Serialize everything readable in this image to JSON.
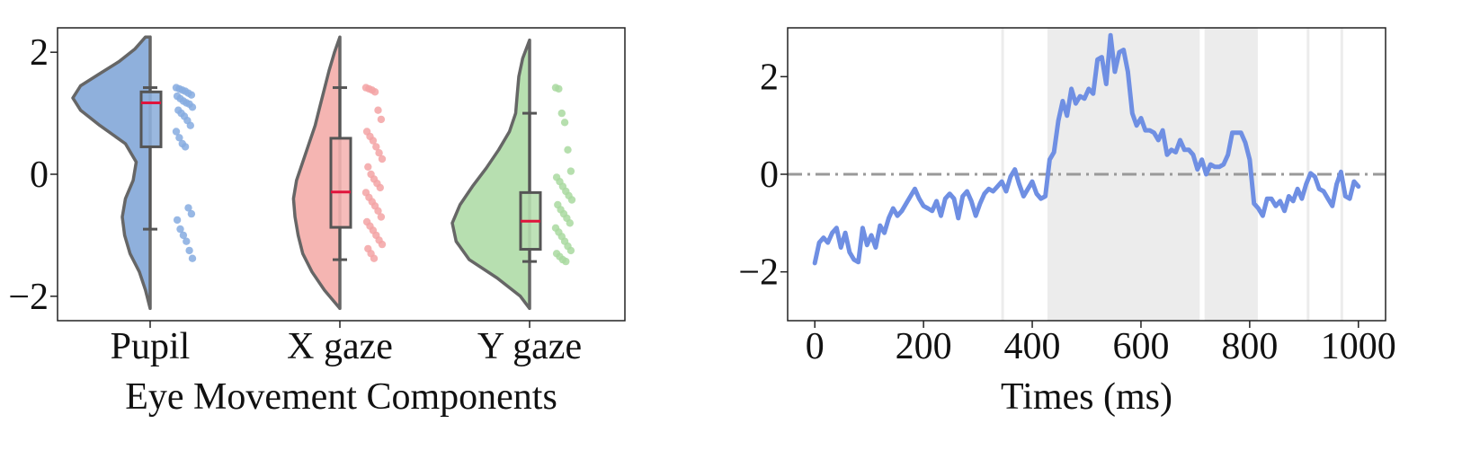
{
  "chart_data": [
    {
      "type": "violin",
      "title": "",
      "xlabel": "Eye Movement Components",
      "ylabel": "",
      "ylim": [
        -2.4,
        2.4
      ],
      "yticks": [
        2,
        0,
        -2
      ],
      "ytick_labels": [
        "2",
        "0",
        "−2"
      ],
      "categories": [
        "Pupil",
        "X gaze",
        "Y gaze"
      ],
      "grid": false,
      "series": [
        {
          "category": "Pupil",
          "color": "#8fb0dc",
          "point_color": "#86ace0",
          "median_color": "#e0143c",
          "extent": [
            -2.2,
            2.25
          ],
          "density": [
            [
              -2.2,
              0.0
            ],
            [
              -1.9,
              0.06
            ],
            [
              -1.6,
              0.14
            ],
            [
              -1.3,
              0.26
            ],
            [
              -1.0,
              0.33
            ],
            [
              -0.7,
              0.36
            ],
            [
              -0.4,
              0.32
            ],
            [
              -0.1,
              0.22
            ],
            [
              0.2,
              0.18
            ],
            [
              0.5,
              0.32
            ],
            [
              0.8,
              0.65
            ],
            [
              1.05,
              0.9
            ],
            [
              1.25,
              1.0
            ],
            [
              1.45,
              0.9
            ],
            [
              1.65,
              0.65
            ],
            [
              1.85,
              0.4
            ],
            [
              2.05,
              0.2
            ],
            [
              2.25,
              0.06
            ]
          ],
          "box": {
            "whisker_low": -0.9,
            "q1": 0.45,
            "median": 1.17,
            "q3": 1.35,
            "whisker_high": 1.42
          },
          "points": [
            1.42,
            1.4,
            1.38,
            1.36,
            1.33,
            1.3,
            1.28,
            1.24,
            1.2,
            1.17,
            1.15,
            1.1,
            1.05,
            1.0,
            0.95,
            0.88,
            0.8,
            0.7,
            0.6,
            0.5,
            0.45,
            -0.55,
            -0.65,
            -0.75,
            -0.9,
            -1.0,
            -1.1,
            -1.25,
            -1.38
          ]
        },
        {
          "category": "X gaze",
          "color": "#f5b5b2",
          "point_color": "#f3a3a5",
          "median_color": "#e0143c",
          "extent": [
            -2.2,
            2.25
          ],
          "density": [
            [
              -2.2,
              0.0
            ],
            [
              -1.9,
              0.2
            ],
            [
              -1.6,
              0.36
            ],
            [
              -1.3,
              0.48
            ],
            [
              -1.0,
              0.54
            ],
            [
              -0.7,
              0.58
            ],
            [
              -0.4,
              0.6
            ],
            [
              -0.1,
              0.56
            ],
            [
              0.2,
              0.48
            ],
            [
              0.5,
              0.4
            ],
            [
              0.8,
              0.32
            ],
            [
              1.1,
              0.26
            ],
            [
              1.4,
              0.2
            ],
            [
              1.7,
              0.14
            ],
            [
              2.0,
              0.07
            ],
            [
              2.25,
              0.0
            ]
          ],
          "box": {
            "whisker_low": -1.4,
            "q1": -0.87,
            "median": -0.29,
            "q3": 0.59,
            "whisker_high": 1.42
          },
          "points": [
            1.42,
            1.4,
            1.38,
            1.35,
            1.05,
            0.9,
            0.7,
            0.62,
            0.55,
            0.45,
            0.35,
            0.25,
            0.12,
            0.0,
            -0.08,
            -0.15,
            -0.22,
            -0.3,
            -0.38,
            -0.45,
            -0.52,
            -0.6,
            -0.7,
            -0.78,
            -0.85,
            -0.92,
            -1.0,
            -1.08,
            -1.15,
            -1.22,
            -1.3,
            -1.38
          ]
        },
        {
          "category": "Y gaze",
          "color": "#b7dfb0",
          "point_color": "#a9d9a0",
          "median_color": "#e0143c",
          "extent": [
            -2.2,
            2.2
          ],
          "density": [
            [
              -2.2,
              0.0
            ],
            [
              -2.0,
              0.12
            ],
            [
              -1.7,
              0.42
            ],
            [
              -1.4,
              0.78
            ],
            [
              -1.1,
              0.95
            ],
            [
              -0.8,
              1.0
            ],
            [
              -0.5,
              0.9
            ],
            [
              -0.2,
              0.74
            ],
            [
              0.1,
              0.56
            ],
            [
              0.4,
              0.4
            ],
            [
              0.7,
              0.26
            ],
            [
              1.0,
              0.18
            ],
            [
              1.3,
              0.16
            ],
            [
              1.6,
              0.14
            ],
            [
              1.9,
              0.09
            ],
            [
              2.2,
              0.0
            ]
          ],
          "box": {
            "whisker_low": -1.43,
            "q1": -1.23,
            "median": -0.77,
            "q3": -0.3,
            "whisker_high": 1.0
          },
          "points": [
            1.42,
            1.4,
            1.0,
            0.85,
            0.4,
            0.05,
            -0.05,
            -0.12,
            -0.2,
            -0.28,
            -0.35,
            -0.42,
            -0.5,
            -0.58,
            -0.65,
            -0.72,
            -0.8,
            -0.88,
            -0.95,
            -1.02,
            -1.1,
            -1.18,
            -1.25,
            -1.3,
            -1.35,
            -1.4,
            -1.43
          ]
        }
      ]
    },
    {
      "type": "line",
      "title": "",
      "xlabel": "Times (ms)",
      "ylabel": "",
      "xlim": [
        -50,
        1050
      ],
      "ylim": [
        -3,
        3
      ],
      "xticks": [
        0,
        200,
        400,
        600,
        800,
        1000
      ],
      "xtick_labels": [
        "0",
        "200",
        "400",
        "600",
        "800",
        "1000"
      ],
      "yticks": [
        2,
        0,
        -2
      ],
      "ytick_labels": [
        "2",
        "0",
        "−2"
      ],
      "grid": false,
      "reference_line": {
        "y": 0,
        "style": "dash-dot",
        "color": "#999999"
      },
      "shaded_regions": [
        [
          343,
          348
        ],
        [
          428,
          708
        ],
        [
          717,
          815
        ],
        [
          905,
          910
        ],
        [
          967,
          972
        ]
      ],
      "shaded_color": "#ececec",
      "series": [
        {
          "color": "#6f8fe3",
          "x": [
            0,
            8,
            16,
            24,
            32,
            40,
            48,
            56,
            64,
            72,
            80,
            88,
            96,
            104,
            112,
            120,
            128,
            136,
            144,
            152,
            160,
            168,
            176,
            184,
            192,
            200,
            208,
            216,
            224,
            232,
            240,
            248,
            256,
            264,
            272,
            280,
            288,
            296,
            304,
            312,
            320,
            328,
            336,
            344,
            352,
            360,
            368,
            376,
            384,
            392,
            400,
            408,
            416,
            424,
            432,
            440,
            448,
            456,
            464,
            472,
            480,
            488,
            496,
            504,
            512,
            520,
            528,
            536,
            544,
            552,
            560,
            568,
            576,
            584,
            592,
            600,
            608,
            616,
            624,
            632,
            640,
            648,
            656,
            664,
            672,
            680,
            688,
            696,
            704,
            712,
            720,
            728,
            736,
            744,
            752,
            760,
            768,
            776,
            784,
            792,
            800,
            808,
            816,
            824,
            832,
            840,
            848,
            856,
            864,
            872,
            880,
            888,
            896,
            904,
            912,
            920,
            928,
            936,
            944,
            952,
            960,
            968,
            976,
            984,
            992,
            1000
          ],
          "y": [
            -1.82,
            -1.4,
            -1.3,
            -1.4,
            -1.2,
            -1.1,
            -1.5,
            -1.2,
            -1.6,
            -1.75,
            -1.8,
            -1.1,
            -1.45,
            -1.25,
            -1.5,
            -1.05,
            -1.2,
            -0.9,
            -0.7,
            -0.85,
            -0.75,
            -0.6,
            -0.45,
            -0.3,
            -0.5,
            -0.65,
            -0.7,
            -0.75,
            -0.55,
            -0.85,
            -0.5,
            -0.4,
            -0.5,
            -0.9,
            -0.45,
            -0.35,
            -0.55,
            -0.85,
            -0.6,
            -0.4,
            -0.3,
            -0.35,
            -0.25,
            -0.15,
            -0.35,
            -0.05,
            0.1,
            -0.2,
            -0.45,
            -0.3,
            -0.15,
            -0.4,
            -0.5,
            -0.45,
            0.3,
            0.45,
            1.1,
            1.5,
            1.2,
            1.75,
            1.45,
            1.6,
            1.55,
            1.75,
            1.65,
            2.35,
            2.4,
            1.85,
            2.85,
            2.1,
            2.5,
            2.55,
            2.1,
            1.25,
            1.0,
            1.15,
            0.9,
            0.9,
            0.85,
            0.7,
            0.9,
            0.4,
            0.5,
            0.45,
            0.7,
            0.5,
            0.5,
            0.4,
            0.1,
            0.3,
            0.0,
            0.2,
            0.15,
            0.15,
            0.2,
            0.4,
            0.85,
            0.85,
            0.85,
            0.65,
            0.3,
            -0.6,
            -0.7,
            -0.85,
            -0.5,
            -0.5,
            -0.65,
            -0.55,
            -0.75,
            -0.45,
            -0.55,
            -0.3,
            -0.5,
            -0.2,
            0.02,
            -0.05,
            -0.3,
            -0.35,
            -0.5,
            -0.65,
            -0.2,
            0.05,
            -0.45,
            -0.5,
            -0.15,
            -0.25
          ]
        }
      ]
    }
  ]
}
